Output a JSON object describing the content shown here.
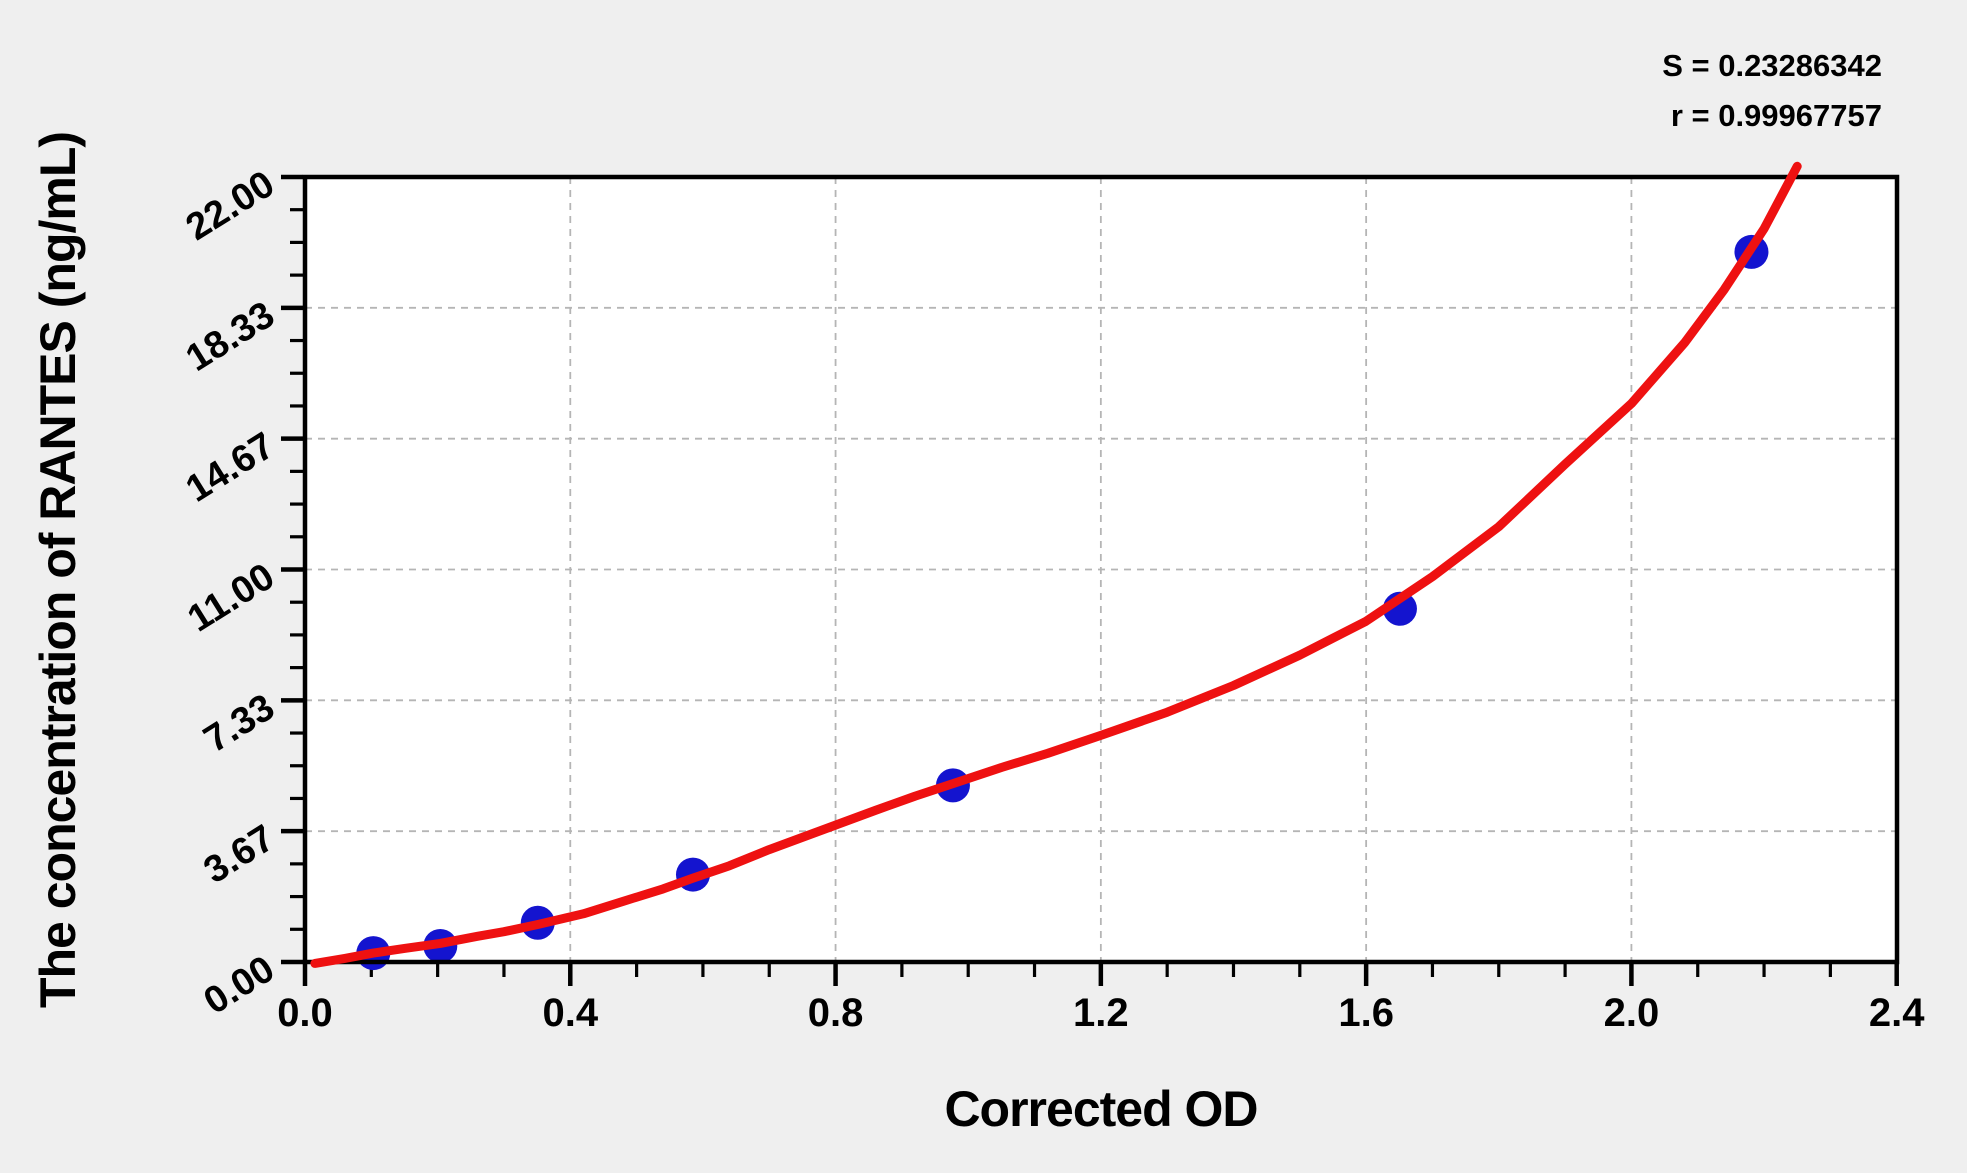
{
  "page": {
    "background": "#efefef"
  },
  "annotation": {
    "s_label": "S = 0.23286342",
    "r_label": "r = 0.99967757"
  },
  "chart_data": {
    "type": "scatter",
    "title": "",
    "xlabel": "Corrected OD",
    "ylabel": "The concentration of RANTES (ng/mL)",
    "xlim": [
      0.0,
      2.4
    ],
    "ylim": [
      0.0,
      22.0
    ],
    "x_ticks": {
      "values": [
        0.0,
        0.4,
        0.8,
        1.2,
        1.6,
        2.0,
        2.4
      ],
      "labels": [
        "0.0",
        "0.4",
        "0.8",
        "1.2",
        "1.6",
        "2.0",
        "2.4"
      ],
      "minor_step": 0.1
    },
    "y_ticks": {
      "values": [
        0.0,
        3.6667,
        7.3333,
        11.0,
        14.6667,
        18.3333,
        22.0
      ],
      "labels": [
        "0.00",
        "3.67",
        "7.33",
        "11.00",
        "14.67",
        "18.33",
        "22.00"
      ],
      "minor_per_major": 4
    },
    "grid": {
      "show": true,
      "style": "dashed",
      "at": "major",
      "color": "#b5b5b5"
    },
    "legend_position": "none",
    "series": [
      {
        "name": "standard-points",
        "type": "scatter",
        "marker": "circle",
        "color": "#1414cf",
        "points": [
          [
            0.103,
            0.25
          ],
          [
            0.204,
            0.45
          ],
          [
            0.351,
            1.1
          ],
          [
            0.585,
            2.45
          ],
          [
            0.977,
            4.95
          ],
          [
            1.651,
            9.9
          ],
          [
            2.181,
            19.9
          ]
        ]
      },
      {
        "name": "fitted-curve",
        "type": "line",
        "color": "#ee1111",
        "points": [
          [
            0.015,
            -0.04
          ],
          [
            0.06,
            0.1
          ],
          [
            0.103,
            0.25
          ],
          [
            0.15,
            0.38
          ],
          [
            0.204,
            0.52
          ],
          [
            0.26,
            0.72
          ],
          [
            0.3,
            0.85
          ],
          [
            0.351,
            1.05
          ],
          [
            0.42,
            1.35
          ],
          [
            0.48,
            1.7
          ],
          [
            0.54,
            2.05
          ],
          [
            0.585,
            2.35
          ],
          [
            0.64,
            2.7
          ],
          [
            0.7,
            3.15
          ],
          [
            0.78,
            3.7
          ],
          [
            0.86,
            4.25
          ],
          [
            0.92,
            4.65
          ],
          [
            0.977,
            5.0
          ],
          [
            1.05,
            5.45
          ],
          [
            1.12,
            5.85
          ],
          [
            1.2,
            6.35
          ],
          [
            1.3,
            7.0
          ],
          [
            1.4,
            7.75
          ],
          [
            1.5,
            8.6
          ],
          [
            1.6,
            9.55
          ],
          [
            1.7,
            10.8
          ],
          [
            1.8,
            12.2
          ],
          [
            1.9,
            13.95
          ],
          [
            2.0,
            15.65
          ],
          [
            2.08,
            17.35
          ],
          [
            2.14,
            18.85
          ],
          [
            2.2,
            20.55
          ],
          [
            2.25,
            22.3
          ]
        ]
      }
    ],
    "fit_stats": {
      "S": 0.23286342,
      "r": 0.99967757
    }
  },
  "colors": {
    "plot_background": "#ffffff",
    "frame": "#000000",
    "text": "#000000",
    "grid": "#b5b5b5",
    "curve_red": "#ee1111",
    "point_blue": "#1414cf"
  }
}
